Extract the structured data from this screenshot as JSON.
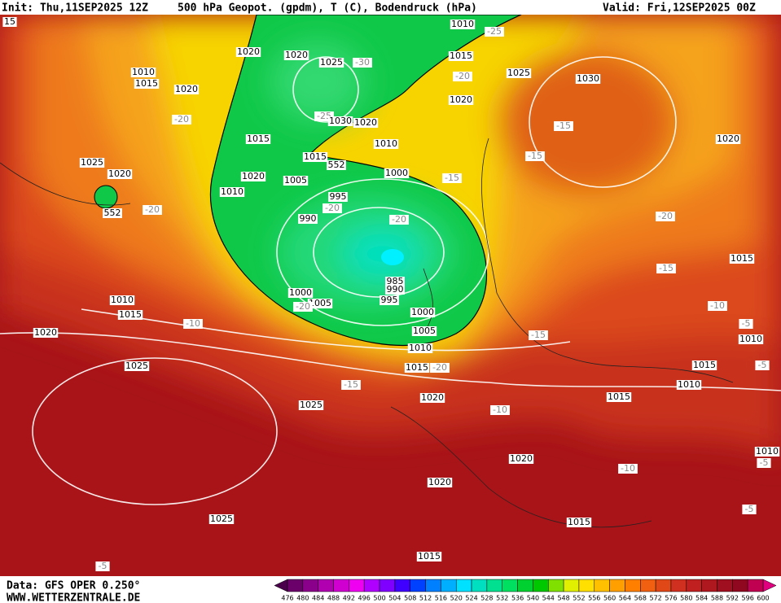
{
  "header": {
    "init": "Init: Thu,11SEP2025 12Z",
    "title": "500 hPa Geopot. (gpdm), T (C), Bodendruck (hPa)",
    "valid": "Valid: Fri,12SEP2025 00Z"
  },
  "footer": {
    "data": "Data: GFS OPER 0.250°",
    "source": "WWW.WETTERZENTRALE.DE"
  },
  "colorbar": {
    "labels": [
      476,
      480,
      484,
      488,
      492,
      496,
      500,
      504,
      508,
      512,
      516,
      520,
      524,
      528,
      532,
      536,
      540,
      544,
      548,
      552,
      556,
      560,
      564,
      568,
      572,
      576,
      580,
      584,
      588,
      592,
      596,
      600
    ],
    "colors": [
      "#6b006b",
      "#8b008b",
      "#b000b0",
      "#d000d0",
      "#f000f0",
      "#b000ff",
      "#8000ff",
      "#4000ff",
      "#0040ff",
      "#0080ff",
      "#00b0ff",
      "#00e0ff",
      "#00e0c0",
      "#00e090",
      "#00e060",
      "#00d030",
      "#00c800",
      "#80e000",
      "#e0f000",
      "#ffe000",
      "#ffc000",
      "#ffa000",
      "#ff8000",
      "#f06010",
      "#e04818",
      "#d03020",
      "#c02020",
      "#b01820",
      "#a00f20",
      "#900820",
      "#c00050"
    ],
    "under_color": "#4b004b",
    "over_color": "#e0007f"
  },
  "map_labels": [
    "15",
    "1010",
    "-25",
    "1020",
    "1020",
    "1025",
    "-30",
    "1015",
    "1025",
    "1030",
    "1010",
    "1015",
    "1020",
    "-20",
    "1020",
    "-20",
    "-25",
    "1030",
    "1020",
    "-15",
    "1020",
    "1015",
    "1010",
    "-15",
    "1025",
    "1020",
    "1015",
    "552",
    "1000",
    "-15",
    "1020",
    "1005",
    "1010",
    "995",
    "-20",
    "-20",
    "552",
    "990",
    "-20",
    "-20",
    "-15",
    "1015",
    "985",
    "990",
    "1000",
    "1005",
    "-20",
    "995",
    "1010",
    "1015",
    "1000",
    "-10",
    "-10",
    "1020",
    "1005",
    "-15",
    "-5",
    "1010",
    "1010",
    "1015",
    "-20",
    "1025",
    "1015",
    "-5",
    "1010",
    "-15",
    "1015",
    "1020",
    "1025",
    "-10",
    "1010",
    "-5",
    "1020",
    "-10",
    "1020",
    "1025",
    "1015",
    "-5",
    "1015",
    "-5"
  ]
}
